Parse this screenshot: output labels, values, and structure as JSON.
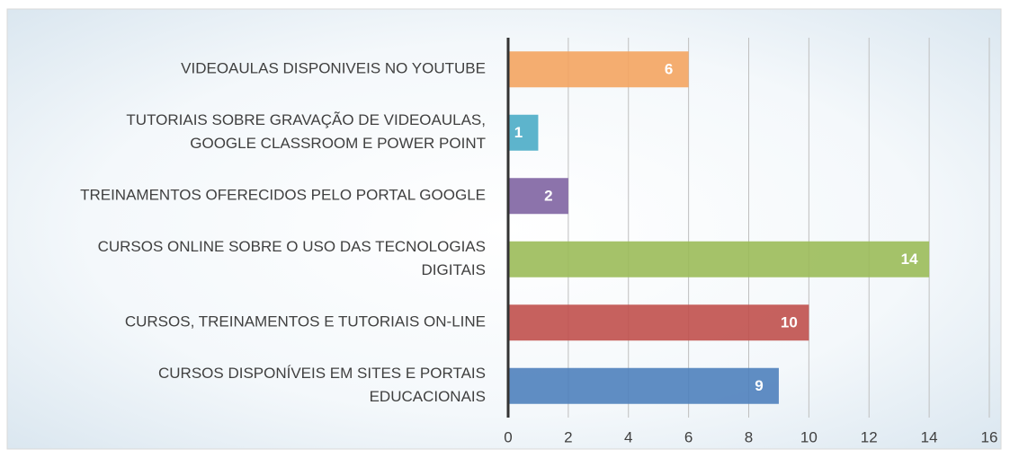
{
  "chart_data": {
    "type": "barh",
    "categories": [
      [
        "VIDEOAULAS DISPONIVEIS NO YOUTUBE"
      ],
      [
        "TUTORIAIS SOBRE GRAVAÇÃO DE VIDEOAULAS,",
        "GOOGLE CLASSROOM E POWER POINT"
      ],
      [
        "TREINAMENTOS OFERECIDOS PELO PORTAL GOOGLE"
      ],
      [
        "CURSOS ONLINE SOBRE O USO DAS TECNOLOGIAS",
        "DIGITAIS"
      ],
      [
        "CURSOS, TREINAMENTOS E TUTORIAIS ON-LINE"
      ],
      [
        "CURSOS  DISPONÍVEIS EM SITES E PORTAIS",
        "EDUCACIONAIS"
      ]
    ],
    "values": [
      6,
      1,
      2,
      14,
      10,
      9
    ],
    "colors": [
      "#f4a460",
      "#4bacc6",
      "#8064a2",
      "#9bbb59",
      "#c0504d",
      "#4f81bd"
    ],
    "xlim": [
      0,
      16
    ],
    "xticks": [
      0,
      2,
      4,
      6,
      8,
      10,
      12,
      14,
      16
    ],
    "grid": true
  }
}
